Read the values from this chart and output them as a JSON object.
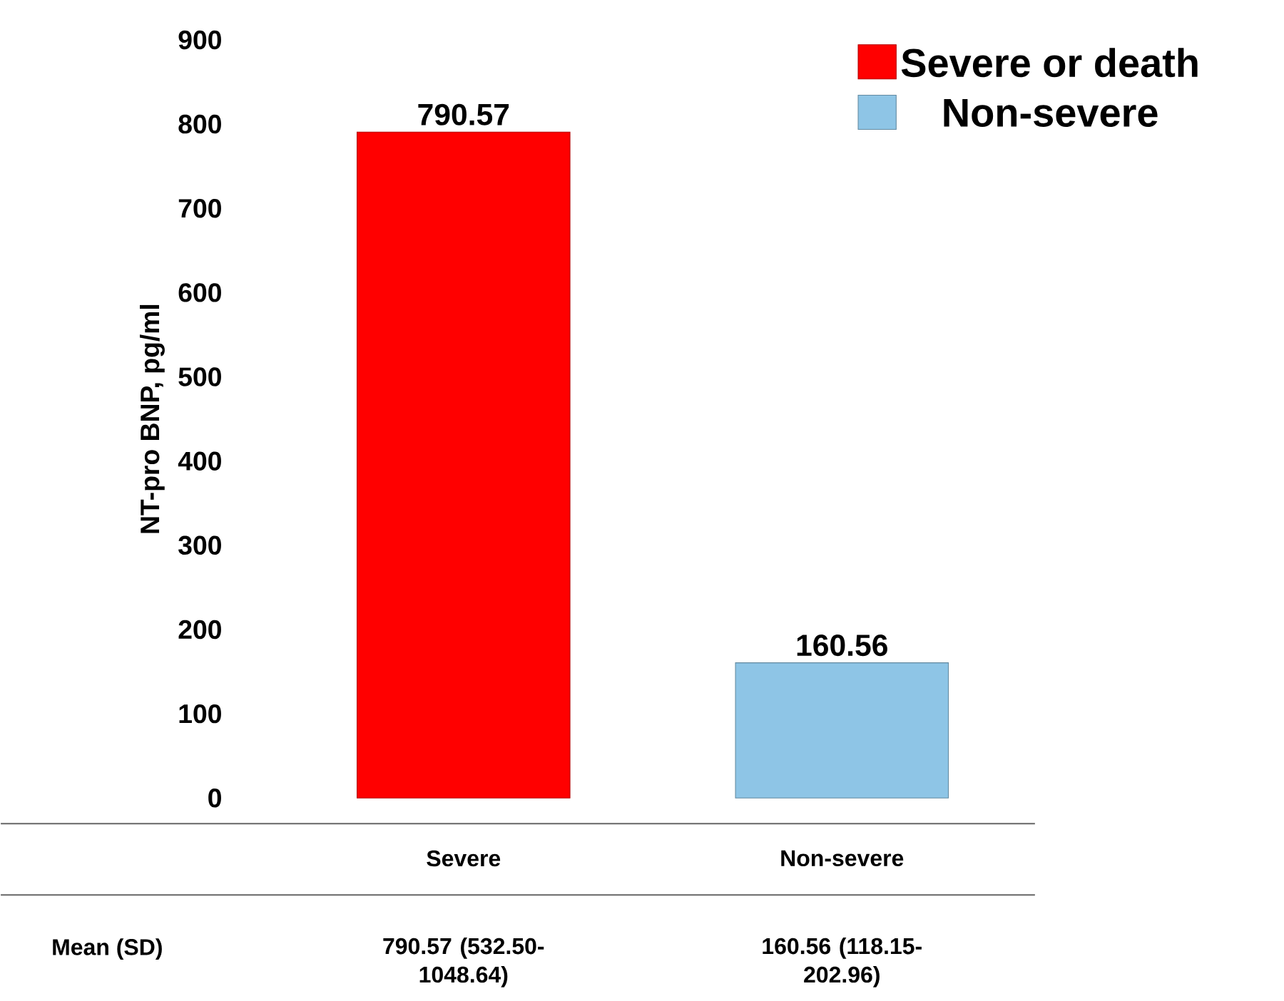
{
  "chart_data": {
    "type": "bar",
    "ylabel": "NT-pro BNP, pg/ml",
    "categories": [
      "Severe",
      "Non-severe"
    ],
    "series": [
      {
        "name": "Severe or death",
        "color": "#ff0000",
        "values": [
          790.57,
          null
        ]
      },
      {
        "name": "Non-severe",
        "color": "#8ec5e6",
        "values": [
          null,
          160.56
        ]
      }
    ],
    "ylim": [
      0,
      900
    ],
    "yticks": [
      0,
      100,
      200,
      300,
      400,
      500,
      600,
      700,
      800,
      900
    ],
    "data_labels": true,
    "legend": "top right",
    "grid": false,
    "annotations": [
      "Mean (SD)",
      "790.57 (532.50-1048.64)",
      "160.56 (118.15-202.96)"
    ]
  }
}
